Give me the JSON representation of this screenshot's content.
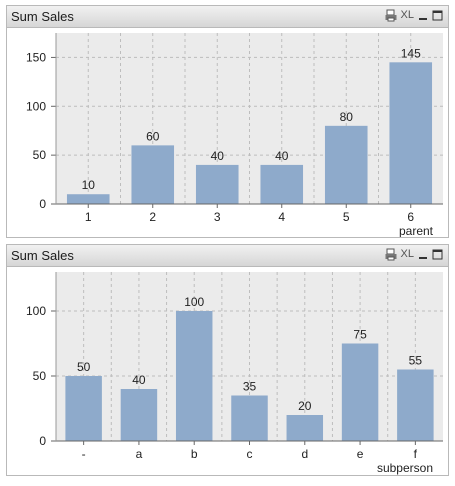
{
  "panels": [
    {
      "caption": {
        "title": "Sum Sales",
        "xl_label": "XL"
      },
      "icons": [
        "print-icon",
        "xl-icon",
        "minimize-icon",
        "maximize-icon"
      ]
    },
    {
      "caption": {
        "title": "Sum Sales",
        "xl_label": "XL"
      },
      "icons": [
        "print-icon",
        "xl-icon",
        "minimize-icon",
        "maximize-icon"
      ]
    }
  ],
  "colors": {
    "bar": "#8eaacb",
    "plot_bg": "#ebebeb",
    "grid": "#bdbdbd"
  },
  "chart_data": [
    {
      "type": "bar",
      "categories": [
        "1",
        "2",
        "3",
        "4",
        "5",
        "6"
      ],
      "values": [
        10,
        60,
        40,
        40,
        80,
        145
      ],
      "data_labels": [
        "10",
        "60",
        "40",
        "40",
        "80",
        "145"
      ],
      "xlabel": "parent",
      "ylabel": "",
      "ylim": [
        0,
        175
      ],
      "yticks": [
        0,
        50,
        100,
        150
      ],
      "grid": true
    },
    {
      "type": "bar",
      "categories": [
        "-",
        "a",
        "b",
        "c",
        "d",
        "e",
        "f"
      ],
      "values": [
        50,
        40,
        100,
        35,
        20,
        75,
        55
      ],
      "data_labels": [
        "50",
        "40",
        "100",
        "35",
        "20",
        "75",
        "55"
      ],
      "xlabel": "subperson",
      "ylabel": "",
      "ylim": [
        0,
        130
      ],
      "yticks": [
        0,
        50,
        100
      ],
      "grid": true
    }
  ]
}
